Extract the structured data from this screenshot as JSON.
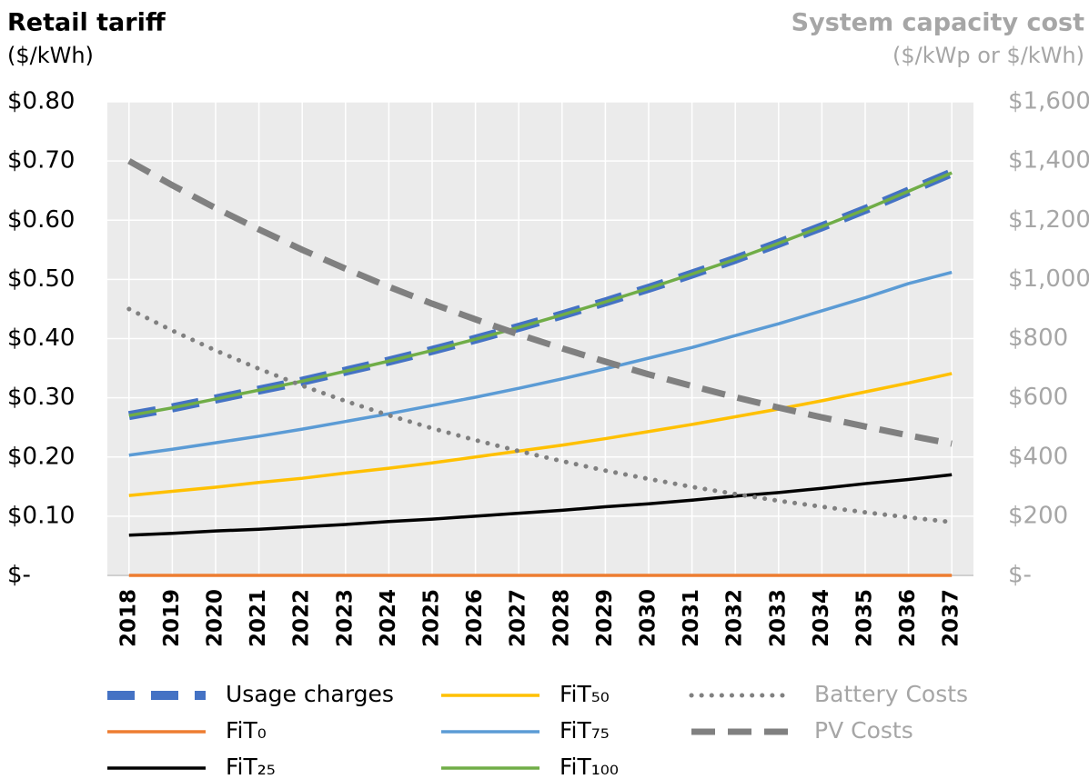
{
  "chart_data": {
    "type": "line",
    "title": "Retail tariff",
    "ylabel": "($/kWh)",
    "y2title": "System capacity cost",
    "y2label": "($/kWp or $/kWh)",
    "categories": [
      "2018",
      "2019",
      "2020",
      "2021",
      "2022",
      "2023",
      "2024",
      "2025",
      "2026",
      "2027",
      "2028",
      "2029",
      "2030",
      "2031",
      "2032",
      "2033",
      "2034",
      "2035",
      "2036",
      "2037"
    ],
    "ylim": [
      0,
      0.8
    ],
    "yticks": [
      {
        "value": 0,
        "label": "$-"
      },
      {
        "value": 0.1,
        "label": "$0.10"
      },
      {
        "value": 0.2,
        "label": "$0.20"
      },
      {
        "value": 0.3,
        "label": "$0.30"
      },
      {
        "value": 0.4,
        "label": "$0.40"
      },
      {
        "value": 0.5,
        "label": "$0.50"
      },
      {
        "value": 0.6,
        "label": "$0.60"
      },
      {
        "value": 0.7,
        "label": "$0.70"
      },
      {
        "value": 0.8,
        "label": "$0.80"
      }
    ],
    "y2lim": [
      0,
      1600
    ],
    "y2ticks": [
      {
        "value": 0,
        "label": "$-"
      },
      {
        "value": 200,
        "label": "$200"
      },
      {
        "value": 400,
        "label": "$400"
      },
      {
        "value": 600,
        "label": "$600"
      },
      {
        "value": 800,
        "label": "$800"
      },
      {
        "value": 1000,
        "label": "$1,000"
      },
      {
        "value": 1200,
        "label": "$1,200"
      },
      {
        "value": 1400,
        "label": "$1,400"
      },
      {
        "value": 1600,
        "label": "$1,600"
      }
    ],
    "grid": true,
    "legend": "bottom",
    "series": [
      {
        "name": "Usage charges",
        "color": "#4472c4",
        "style": "dashed",
        "values": [
          0.27,
          0.283,
          0.298,
          0.313,
          0.328,
          0.345,
          0.362,
          0.38,
          0.399,
          0.419,
          0.44,
          0.462,
          0.485,
          0.509,
          0.534,
          0.561,
          0.589,
          0.618,
          0.649,
          0.68
        ]
      },
      {
        "name": "FiT₀",
        "color": "#ed7d31",
        "style": "solid",
        "values": [
          0,
          0,
          0,
          0,
          0,
          0,
          0,
          0,
          0,
          0,
          0,
          0,
          0,
          0,
          0,
          0,
          0,
          0,
          0,
          0
        ]
      },
      {
        "name": "FiT₂₅",
        "color": "#000000",
        "style": "solid",
        "values": [
          0.068,
          0.071,
          0.075,
          0.078,
          0.082,
          0.086,
          0.091,
          0.095,
          0.1,
          0.105,
          0.11,
          0.116,
          0.121,
          0.127,
          0.134,
          0.14,
          0.147,
          0.155,
          0.162,
          0.17
        ]
      },
      {
        "name": "FiT₅₀",
        "color": "#ffc000",
        "style": "solid",
        "values": [
          0.135,
          0.142,
          0.149,
          0.157,
          0.164,
          0.173,
          0.181,
          0.19,
          0.2,
          0.21,
          0.22,
          0.231,
          0.243,
          0.255,
          0.268,
          0.281,
          0.295,
          0.31,
          0.325,
          0.341
        ]
      },
      {
        "name": "FiT₇₅",
        "color": "#5b9bd5",
        "style": "solid",
        "values": [
          0.203,
          0.213,
          0.224,
          0.235,
          0.247,
          0.26,
          0.273,
          0.287,
          0.301,
          0.316,
          0.332,
          0.349,
          0.367,
          0.385,
          0.405,
          0.425,
          0.447,
          0.469,
          0.493,
          0.512
        ]
      },
      {
        "name": "FiT₁₀₀",
        "color": "#70ad47",
        "style": "solid",
        "values": [
          0.27,
          0.283,
          0.298,
          0.313,
          0.328,
          0.345,
          0.362,
          0.38,
          0.399,
          0.419,
          0.44,
          0.462,
          0.485,
          0.509,
          0.534,
          0.561,
          0.589,
          0.618,
          0.649,
          0.68
        ]
      },
      {
        "name": "Battery Costs",
        "color": "#808080",
        "style": "dotted",
        "axis": "y2",
        "values": [
          900,
          827,
          760,
          698,
          641,
          589,
          541,
          497,
          457,
          420,
          386,
          354,
          326,
          299,
          275,
          252,
          232,
          213,
          196,
          180
        ]
      },
      {
        "name": "PV Costs",
        "color": "#808080",
        "style": "dashed",
        "axis": "y2",
        "values": [
          1400,
          1318,
          1241,
          1169,
          1100,
          1036,
          975,
          918,
          865,
          814,
          767,
          722,
          679,
          640,
          602,
          567,
          534,
          503,
          473,
          445
        ]
      }
    ]
  }
}
